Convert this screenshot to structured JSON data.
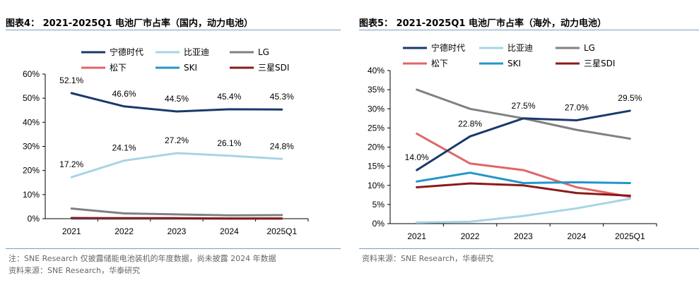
{
  "chart_data": [
    {
      "type": "line",
      "title": "图表4： 2021-2025Q1 电池厂市占率（国内，动力电池）",
      "categories": [
        "2021",
        "2022",
        "2023",
        "2024",
        "2025Q1"
      ],
      "ylim": [
        0,
        60
      ],
      "yticks": [
        "0%",
        "10%",
        "20%",
        "30%",
        "40%",
        "50%",
        "60%"
      ],
      "series": [
        {
          "name": "宁德时代",
          "color": "#1a3a6b",
          "values": [
            52.1,
            46.6,
            44.5,
            45.4,
            45.3
          ],
          "labels": [
            "52.1%",
            "46.6%",
            "44.5%",
            "45.4%",
            "45.3%"
          ]
        },
        {
          "name": "比亚迪",
          "color": "#a8d4e6",
          "values": [
            17.2,
            24.1,
            27.2,
            26.1,
            24.8
          ],
          "labels": [
            "17.2%",
            "24.1%",
            "27.2%",
            "26.1%",
            "24.8%"
          ]
        },
        {
          "name": "LG",
          "color": "#808080",
          "values": [
            4.2,
            2.2,
            1.8,
            1.4,
            1.5
          ]
        },
        {
          "name": "松下",
          "color": "#e06666",
          "values": [
            0.1,
            0.05,
            0.05,
            0.05,
            0.05
          ]
        },
        {
          "name": "SKI",
          "color": "#2196c8",
          "values": [
            0.1,
            0.1,
            0.1,
            0.1,
            0.1
          ]
        },
        {
          "name": "三星SDI",
          "color": "#8b1a1a",
          "values": [
            0.3,
            0.2,
            0.2,
            0.1,
            0.1
          ]
        }
      ],
      "legend": "top",
      "notes": [
        "注：SNE Research 仅披露储能电池装机的年度数据，尚未披露 2024 年数据",
        "资料来源：SNE Research，华泰研究"
      ]
    },
    {
      "type": "line",
      "title": "图表5： 2021-2025Q1 电池厂市占率（海外，动力电池）",
      "categories": [
        "2021",
        "2022",
        "2023",
        "2024",
        "2025Q1"
      ],
      "ylim": [
        0,
        40
      ],
      "yticks": [
        "0%",
        "5%",
        "10%",
        "15%",
        "20%",
        "25%",
        "30%",
        "35%",
        "40%"
      ],
      "series": [
        {
          "name": "宁德时代",
          "color": "#1a3a6b",
          "values": [
            14.0,
            22.8,
            27.5,
            27.0,
            29.5
          ],
          "labels": [
            "14.0%",
            "22.8%",
            "27.5%",
            "27.0%",
            "29.5%"
          ]
        },
        {
          "name": "比亚迪",
          "color": "#a8d4e6",
          "values": [
            0.3,
            0.5,
            2.0,
            4.0,
            6.5
          ]
        },
        {
          "name": "LG",
          "color": "#808080",
          "values": [
            35.0,
            30.0,
            27.5,
            24.5,
            22.2
          ]
        },
        {
          "name": "松下",
          "color": "#e06666",
          "values": [
            23.5,
            15.7,
            14.0,
            9.5,
            7.0
          ]
        },
        {
          "name": "SKI",
          "color": "#2196c8",
          "values": [
            11.0,
            13.3,
            10.6,
            10.8,
            10.6
          ]
        },
        {
          "name": "三星SDI",
          "color": "#8b1a1a",
          "values": [
            9.5,
            10.5,
            10.0,
            8.0,
            7.3
          ]
        }
      ],
      "legend": "top",
      "notes": [
        "资料来源：SNE Research，华泰研究"
      ]
    }
  ]
}
